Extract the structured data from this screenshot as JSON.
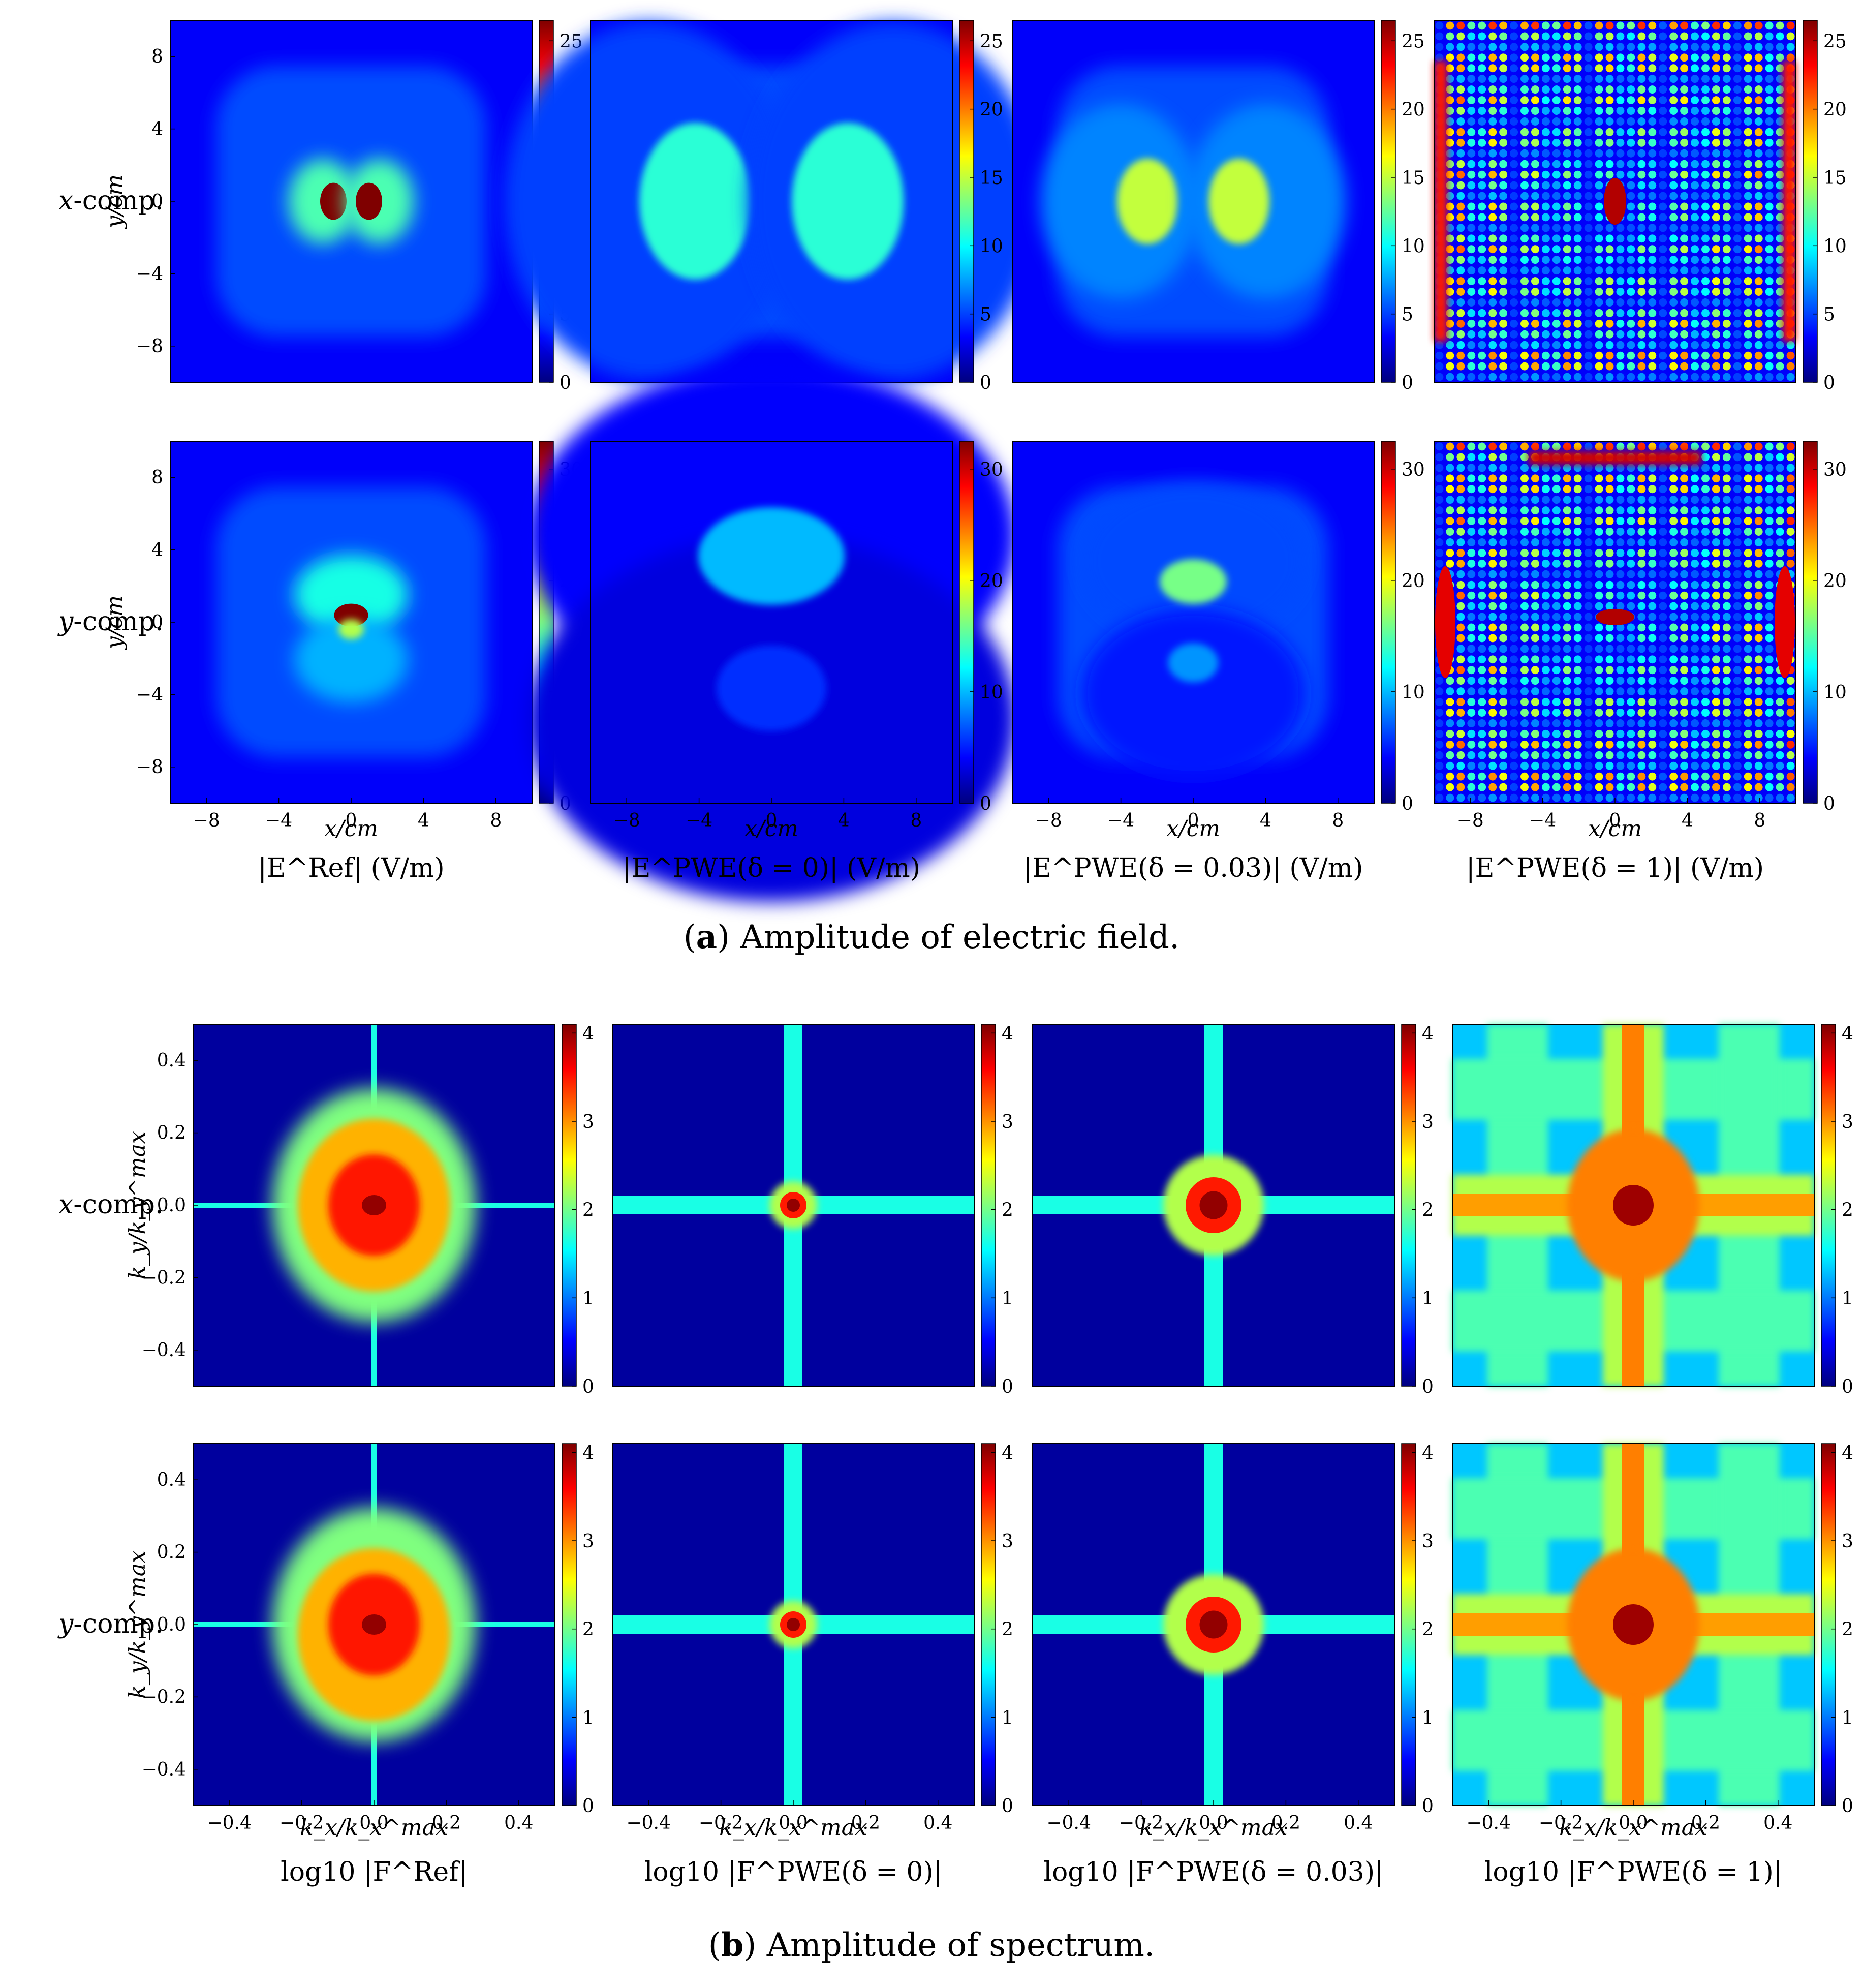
{
  "chart_data": [
    {
      "type": "heatmap",
      "panel": "a",
      "caption_letter": "a",
      "caption_text": "Amplitude of electric field.",
      "rows": [
        {
          "label_var": "x",
          "label_text": "-comp.",
          "colorbar": {
            "min": 0,
            "max": 26.5,
            "ticks": [
              0,
              5,
              10,
              15,
              20,
              25
            ]
          }
        },
        {
          "label_var": "y",
          "label_text": "-comp.",
          "colorbar": {
            "min": 0,
            "max": 32.5,
            "ticks": [
              0,
              10,
              20,
              30
            ]
          }
        }
      ],
      "columns": [
        {
          "label": "|E^Ref| (V/m)",
          "field": "ref"
        },
        {
          "label": "|E^PWE(δ = 0)| (V/m)",
          "field": "pwe0"
        },
        {
          "label": "|E^PWE(δ = 0.03)| (V/m)",
          "field": "pwe003"
        },
        {
          "label": "|E^PWE(δ = 1)| (V/m)",
          "field": "pwe1"
        }
      ],
      "xlabel": "x/cm",
      "ylabel": "y/cm",
      "x_range": [
        -10,
        10
      ],
      "y_range": [
        -10,
        10
      ],
      "x_ticks": [
        -8,
        -4,
        0,
        4,
        8
      ],
      "y_ticks": [
        8,
        4,
        0,
        -4,
        -8
      ],
      "colormap": "jet",
      "peaks": {
        "x_comp": {
          "ref": 26.5,
          "pwe0": 11,
          "pwe003": 15,
          "pwe1": 26.5
        },
        "y_comp": {
          "ref": 32.5,
          "pwe0": 10,
          "pwe003": 16,
          "pwe1": 32.5
        }
      }
    },
    {
      "type": "heatmap",
      "panel": "b",
      "caption_letter": "b",
      "caption_text": "Amplitude of spectrum.",
      "rows": [
        {
          "label_var": "x",
          "label_text": "-comp.",
          "colorbar": {
            "min": 0,
            "max": 4.1,
            "ticks": [
              0,
              1,
              2,
              3,
              4
            ]
          }
        },
        {
          "label_var": "y",
          "label_text": "-comp.",
          "colorbar": {
            "min": 0,
            "max": 4.1,
            "ticks": [
              0,
              1,
              2,
              3,
              4
            ]
          }
        }
      ],
      "columns": [
        {
          "label": "log10 |F^Ref|",
          "field": "ref"
        },
        {
          "label": "log10 |F^PWE(δ = 0)|",
          "field": "pwe0"
        },
        {
          "label": "log10 |F^PWE(δ = 0.03)|",
          "field": "pwe003"
        },
        {
          "label": "log10 |F^PWE(δ = 1)|",
          "field": "pwe1"
        }
      ],
      "xlabel": "k_x/k_x^max",
      "ylabel": "k_y/k_y^max",
      "x_range": [
        -0.5,
        0.5
      ],
      "y_range": [
        -0.5,
        0.5
      ],
      "x_ticks": [
        "−0.4",
        "−0.2",
        "0.0",
        "0.2",
        "0.4"
      ],
      "y_ticks": [
        "0.4",
        "0.2",
        "0.0",
        "−0.2",
        "−0.4"
      ],
      "colormap": "jet"
    }
  ],
  "colors": {
    "background_field": "#0a2fd6",
    "background_spectrum": "#0000a8",
    "jet_stops": [
      "#00007f",
      "#0000ff",
      "#007fff",
      "#00ffff",
      "#7fff7f",
      "#ffff00",
      "#ff7f00",
      "#ff0000",
      "#7f0000"
    ]
  }
}
